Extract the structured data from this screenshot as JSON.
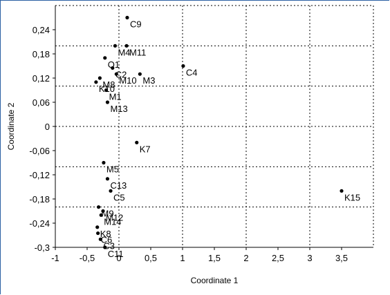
{
  "chart_data": {
    "type": "scatter",
    "xlabel": "Coordinate 1",
    "ylabel": "Coordinate 2",
    "xlim": [
      -1,
      4.0
    ],
    "ylim": [
      -0.3,
      0.3
    ],
    "x_ticks": [
      -1,
      -0.5,
      0,
      0.5,
      1,
      1.5,
      2,
      2.5,
      3,
      3.5
    ],
    "x_tick_labels": [
      "-1",
      "-0,5",
      "0",
      "0,5",
      "1",
      "1,5",
      "2",
      "2,5",
      "3",
      "3,5"
    ],
    "y_ticks": [
      -0.3,
      -0.24,
      -0.18,
      -0.12,
      -0.06,
      0,
      0.06,
      0.12,
      0.18,
      0.24
    ],
    "y_tick_labels": [
      "-0,3",
      "-0,24",
      "-0,18",
      "-0,12",
      "-0,06",
      "0",
      "0,06",
      "0,12",
      "0,18",
      "0,24"
    ],
    "grid": true,
    "points": [
      {
        "label": "C9",
        "x": 0.13,
        "y": 0.27
      },
      {
        "label": "M4",
        "x": -0.06,
        "y": 0.2
      },
      {
        "label": "M11",
        "x": 0.12,
        "y": 0.2
      },
      {
        "label": "O1",
        "x": -0.22,
        "y": 0.17
      },
      {
        "label": "C4",
        "x": 1.01,
        "y": 0.15
      },
      {
        "label": "C2",
        "x": -0.1,
        "y": 0.145
      },
      {
        "label": "M3",
        "x": 0.33,
        "y": 0.13
      },
      {
        "label": "M10",
        "x": -0.04,
        "y": 0.13
      },
      {
        "label": "M8",
        "x": -0.3,
        "y": 0.12
      },
      {
        "label": "K10",
        "x": -0.36,
        "y": 0.11
      },
      {
        "label": "M1",
        "x": -0.2,
        "y": 0.09
      },
      {
        "label": "M13",
        "x": -0.18,
        "y": 0.06
      },
      {
        "label": "K7",
        "x": 0.28,
        "y": -0.04
      },
      {
        "label": "M5",
        "x": -0.24,
        "y": -0.09
      },
      {
        "label": "C13",
        "x": -0.18,
        "y": -0.13
      },
      {
        "label": "C5",
        "x": -0.13,
        "y": -0.16
      },
      {
        "label": "K15",
        "x": 3.5,
        "y": -0.16
      },
      {
        "label": "M9",
        "x": -0.32,
        "y": -0.2
      },
      {
        "label": "M12",
        "x": -0.25,
        "y": -0.21
      },
      {
        "label": "M14",
        "x": -0.28,
        "y": -0.22
      },
      {
        "label": "K8",
        "x": -0.34,
        "y": -0.25
      },
      {
        "label": "C6",
        "x": -0.33,
        "y": -0.265
      },
      {
        "label": "C3",
        "x": -0.29,
        "y": -0.28
      },
      {
        "label": "C11",
        "x": -0.22,
        "y": -0.3
      }
    ]
  }
}
